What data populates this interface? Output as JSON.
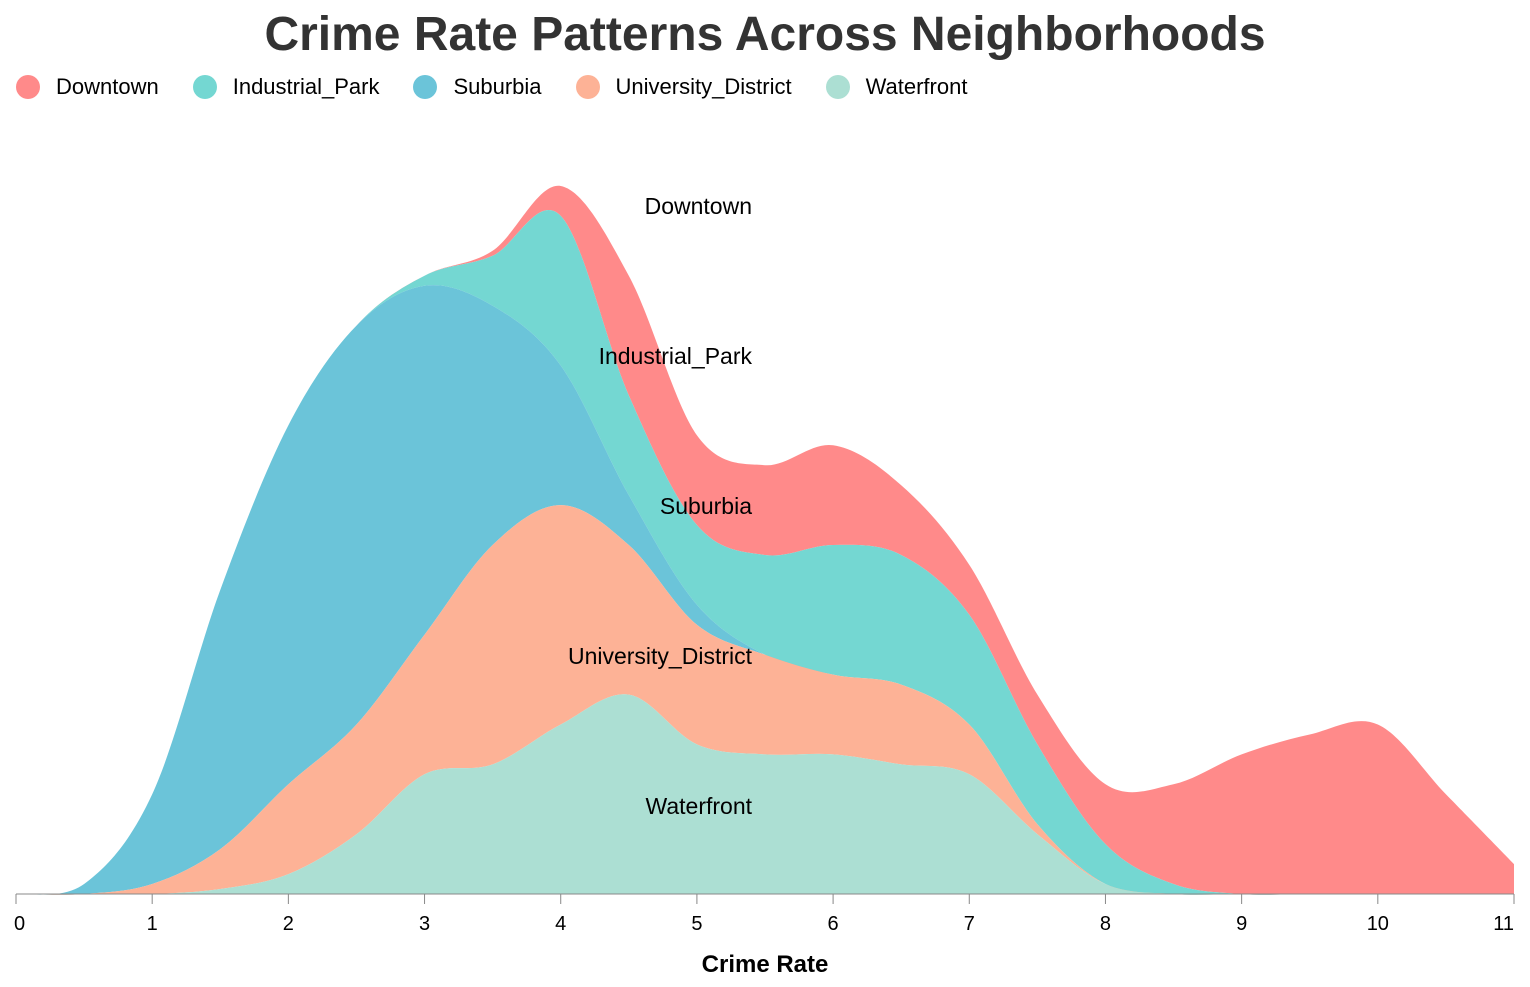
{
  "chart_data": {
    "type": "area",
    "title": "Crime Rate Patterns Across Neighborhoods",
    "xlabel": "Crime Rate",
    "ylabel": "",
    "xlim": [
      0,
      11
    ],
    "stacked": true,
    "grid": false,
    "legend_position": "top-left",
    "x_ticks": [
      "0",
      "1",
      "2",
      "3",
      "4",
      "5",
      "6",
      "7",
      "8",
      "9",
      "10",
      "11"
    ],
    "x": [
      0,
      0.5,
      1,
      1.5,
      2,
      2.5,
      3,
      3.5,
      4,
      4.5,
      5,
      5.5,
      6,
      6.5,
      7,
      7.5,
      8,
      8.5,
      9,
      9.5,
      10,
      10.5,
      11
    ],
    "series": [
      {
        "name": "Downtown",
        "color": "#ff8a8a",
        "values": [
          0,
          0,
          0,
          0,
          0,
          0,
          0,
          1,
          6,
          24,
          18,
          18,
          20,
          14,
          10,
          10,
          12,
          20,
          28,
          32,
          34,
          20,
          6
        ]
      },
      {
        "name": "Industrial_Park",
        "color": "#74d7d2",
        "values": [
          0,
          0,
          0,
          0,
          0,
          0,
          2,
          10,
          30,
          20,
          16,
          20,
          26,
          26,
          22,
          16,
          8,
          2,
          0,
          0,
          0,
          0,
          0
        ]
      },
      {
        "name": "Suburbia",
        "color": "#6bc4d9",
        "values": [
          0,
          2,
          18,
          52,
          72,
          80,
          70,
          48,
          28,
          10,
          4,
          0,
          0,
          0,
          0,
          0,
          0,
          0,
          0,
          0,
          0,
          0,
          0
        ]
      },
      {
        "name": "University_District",
        "color": "#fdb296",
        "values": [
          0,
          0,
          2,
          8,
          18,
          22,
          28,
          44,
          44,
          30,
          24,
          20,
          16,
          16,
          10,
          2,
          0,
          0,
          0,
          0,
          0,
          0,
          0
        ]
      },
      {
        "name": "Waterfront",
        "color": "#acdfd3",
        "values": [
          0,
          0,
          0,
          1,
          4,
          12,
          24,
          26,
          34,
          40,
          30,
          28,
          28,
          26,
          24,
          12,
          2,
          0,
          0,
          0,
          0,
          0,
          0
        ]
      }
    ]
  }
}
